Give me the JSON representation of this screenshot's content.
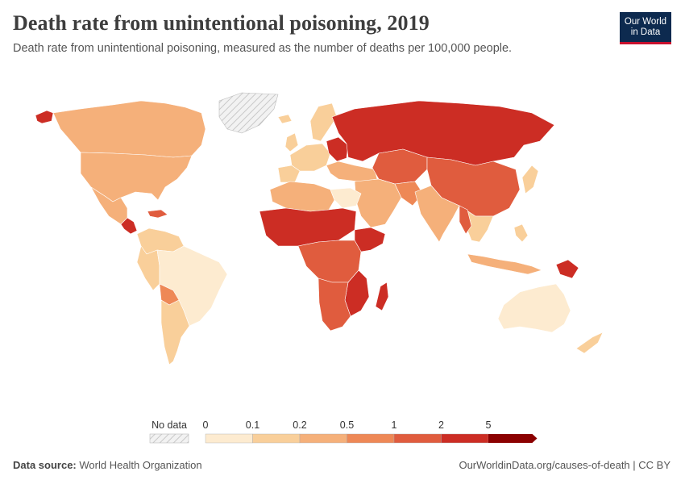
{
  "header": {
    "title": "Death rate from unintentional poisoning, 2019",
    "subtitle": "Death rate from unintentional poisoning, measured as the number of deaths per 100,000 people."
  },
  "logo": {
    "line1": "Our World",
    "line2": "in Data",
    "bg": "#0d2a4f",
    "accent": "#c8102e"
  },
  "legend": {
    "no_data_label": "No data",
    "tick_labels": [
      "0",
      "0.1",
      "0.2",
      "0.5",
      "1",
      "2",
      "5"
    ],
    "bin_colors": [
      "#fdebd0",
      "#f9cf9a",
      "#f5b07a",
      "#ee8856",
      "#e05c3e",
      "#cc2d24",
      "#8b0000"
    ]
  },
  "footer": {
    "source_label": "Data source:",
    "source_value": "World Health Organization",
    "link": "OurWorldinData.org/causes-of-death | CC BY"
  },
  "map_colors": {
    "no_data": "#e6e6e6",
    "very_low": "#fdebd0",
    "low": "#f9cf9a",
    "mid": "#f5b07a",
    "high": "#ee8856",
    "higher": "#e05c3e",
    "highest": "#cc2d24",
    "extreme": "#a31b12"
  }
}
